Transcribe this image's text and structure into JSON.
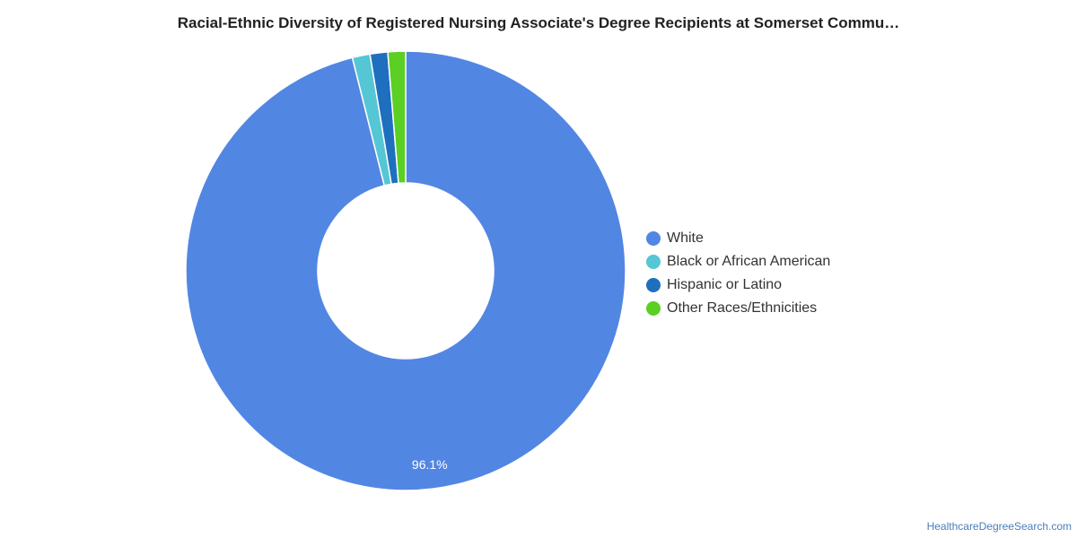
{
  "chart_data": {
    "type": "pie",
    "title": "Racial-Ethnic Diversity of Registered Nursing Associate's Degree Recipients at Somerset Commu…",
    "donut": true,
    "start_angle_deg": 0,
    "direction": "clockwise",
    "legend_position": "right",
    "slices": [
      {
        "label": "White",
        "value": 96.1,
        "color": "#5286e3",
        "data_label": "96.1%"
      },
      {
        "label": "Black or African American",
        "value": 1.3,
        "color": "#55c6d3",
        "data_label": ""
      },
      {
        "label": "Hispanic or Latino",
        "value": 1.3,
        "color": "#1f6fbf",
        "data_label": ""
      },
      {
        "label": "Other Races/Ethnicities",
        "value": 1.3,
        "color": "#5ccf24",
        "data_label": ""
      }
    ]
  },
  "source_text": "HealthcareDegreeSearch.com"
}
